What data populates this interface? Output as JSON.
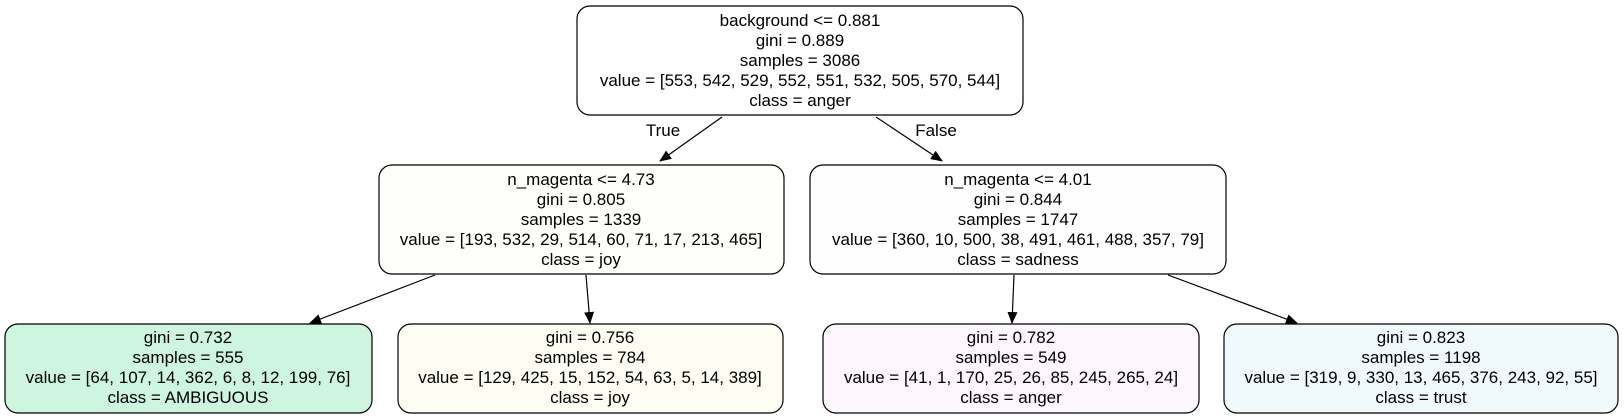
{
  "tree": {
    "edge_labels": {
      "true": "True",
      "false": "False"
    },
    "nodes": [
      {
        "id": "root",
        "fill": "#ffffff",
        "lines": [
          "background <= 0.881",
          "gini = 0.889",
          "samples = 3086",
          "value = [553, 542, 529, 552, 551, 532, 505, 570, 544]",
          "class = anger"
        ]
      },
      {
        "id": "left",
        "fill": "#fefefb",
        "lines": [
          "n_magenta <= 4.73",
          "gini = 0.805",
          "samples = 1339",
          "value = [193, 532, 29, 514, 60, 71, 17, 213, 465]",
          "class = joy"
        ]
      },
      {
        "id": "right",
        "fill": "#fffeff",
        "lines": [
          "n_magenta <= 4.01",
          "gini = 0.844",
          "samples = 1747",
          "value = [360, 10, 500, 38, 491, 461, 488, 357, 79]",
          "class = sadness"
        ]
      },
      {
        "id": "leaf1",
        "fill": "#cdf5e0",
        "lines": [
          "gini = 0.732",
          "samples = 555",
          "value = [64, 107, 14, 362, 6, 8, 12, 199, 76]",
          "class = AMBIGUOUS"
        ]
      },
      {
        "id": "leaf2",
        "fill": "#fdfdf4",
        "lines": [
          "gini = 0.756",
          "samples = 784",
          "value = [129, 425, 15, 152, 54, 63, 5, 14, 389]",
          "class = joy"
        ]
      },
      {
        "id": "leaf3",
        "fill": "#fdf6fc",
        "lines": [
          "gini = 0.782",
          "samples = 549",
          "value = [41, 1, 170, 25, 26, 85, 245, 265, 24]",
          "class = anger"
        ]
      },
      {
        "id": "leaf4",
        "fill": "#f0fafc",
        "lines": [
          "gini = 0.823",
          "samples = 1198",
          "value = [319, 9, 330, 13, 465, 376, 243, 92, 55]",
          "class = trust"
        ]
      }
    ]
  }
}
